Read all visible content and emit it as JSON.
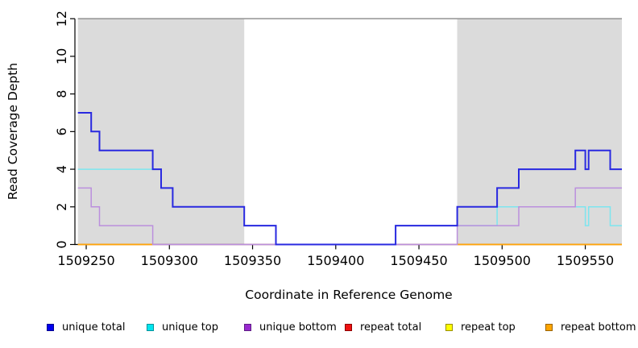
{
  "chart_data": {
    "type": "line",
    "title": "",
    "xlabel": "Coordinate in Reference Genome",
    "ylabel": "Read Coverage Depth",
    "x_range": [
      1509245,
      1509572
    ],
    "y_range": [
      0,
      12
    ],
    "x_ticks": [
      1509250,
      1509300,
      1509350,
      1509400,
      1509450,
      1509500,
      1509550
    ],
    "y_ticks": [
      0,
      2,
      4,
      6,
      8,
      10,
      12
    ],
    "grid": "off",
    "legend_position": "bottom",
    "plot_background": "#ffffff",
    "shaded_regions": [
      {
        "name": "repeat-region-left",
        "x_start": 1509245,
        "x_end": 1509345,
        "color": "#DBDBDB"
      },
      {
        "name": "repeat-region-right",
        "x_start": 1509473,
        "x_end": 1509572,
        "color": "#DBDBDB"
      }
    ],
    "top_border": {
      "y": 12,
      "color": "#8A8A8A"
    },
    "series": [
      {
        "name": "repeat total",
        "color": "#DE5360",
        "width": 1.3,
        "segments": [
          {
            "points": [
              [
                1509245,
                0
              ]
            ],
            "end": 1509572
          }
        ]
      },
      {
        "name": "repeat top",
        "color": "#F5E400",
        "width": 1.3,
        "segments": [
          {
            "points": [
              [
                1509245,
                0
              ]
            ],
            "end": 1509290
          },
          {
            "points": [
              [
                1509473,
                0
              ]
            ],
            "end": 1509572
          }
        ]
      },
      {
        "name": "repeat bottom",
        "color": "#FFA30A",
        "width": 1.8,
        "segments": [
          {
            "points": [
              [
                1509245,
                0
              ]
            ],
            "end": 1509290
          },
          {
            "points": [
              [
                1509473,
                0
              ]
            ],
            "end": 1509572
          }
        ]
      },
      {
        "name": "unique top",
        "color": "#7DE5EF",
        "width": 1.5,
        "segments": [
          {
            "points": [
              [
                1509245,
                4
              ],
              [
                1509295,
                3
              ],
              [
                1509302,
                2
              ],
              [
                1509345,
                1
              ],
              [
                1509364,
                0
              ],
              [
                1509436,
                1
              ],
              [
                1509497,
                2
              ],
              [
                1509550,
                1
              ],
              [
                1509552,
                2
              ],
              [
                1509565,
                1
              ]
            ],
            "end": 1509572
          }
        ]
      },
      {
        "name": "unique bottom",
        "color": "#BB8FDD",
        "width": 1.5,
        "segments": [
          {
            "points": [
              [
                1509245,
                3
              ],
              [
                1509253,
                2
              ],
              [
                1509258,
                1
              ],
              [
                1509290,
                0
              ],
              [
                1509473,
                1
              ],
              [
                1509510,
                2
              ],
              [
                1509544,
                3
              ]
            ],
            "end": 1509572
          }
        ]
      },
      {
        "name": "unique total",
        "color": "#2929E0",
        "width": 2,
        "segments": [
          {
            "points": [
              [
                1509245,
                7
              ],
              [
                1509253,
                6
              ],
              [
                1509258,
                5
              ],
              [
                1509290,
                4
              ],
              [
                1509295,
                3
              ],
              [
                1509302,
                2
              ],
              [
                1509345,
                1
              ],
              [
                1509364,
                0
              ],
              [
                1509436,
                1
              ],
              [
                1509473,
                2
              ],
              [
                1509497,
                3
              ],
              [
                1509510,
                4
              ],
              [
                1509544,
                5
              ],
              [
                1509550,
                4
              ],
              [
                1509552,
                5
              ],
              [
                1509565,
                4
              ]
            ],
            "end": 1509572
          }
        ]
      }
    ]
  },
  "legend": {
    "items": [
      {
        "label": "unique total",
        "fill": "#0000EE",
        "border": "#000090"
      },
      {
        "label": "unique top",
        "fill": "#00E5EE",
        "border": "#00939B"
      },
      {
        "label": "unique bottom",
        "fill": "#9929CF",
        "border": "#5E1D85"
      },
      {
        "label": "repeat total",
        "fill": "#EE1111",
        "border": "#8E0000"
      },
      {
        "label": "repeat top",
        "fill": "#FFFF00",
        "border": "#998F00"
      },
      {
        "label": "repeat bottom",
        "fill": "#FFA500",
        "border": "#9B6400"
      }
    ]
  }
}
